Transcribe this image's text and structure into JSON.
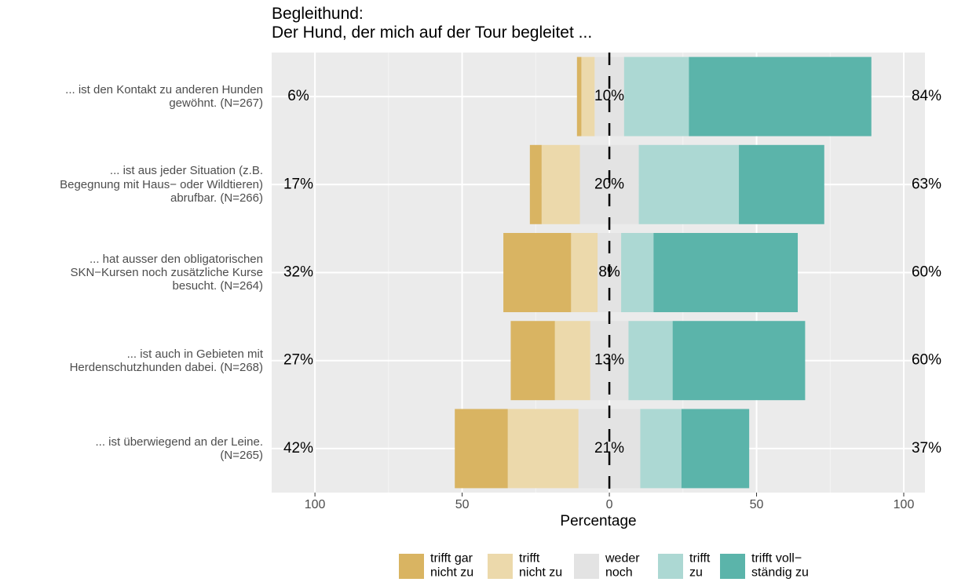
{
  "chart_data": {
    "type": "diverging_stacked_bar",
    "title": "Begleithund:\nDer Hund, der mich auf der Tour begleitet ...",
    "x_label": "Percentage",
    "categories": [
      "... ist den Kontakt zu anderen Hunden\ngewöhnt. (N=267)",
      "... ist aus jeder Situation (z.B.\nBegegnung mit Haus− oder Wildtieren)\nabrufbar. (N=266)",
      "... hat ausser den obligatorischen\nSKN−Kursen noch zusätzliche Kurse\nbesucht. (N=264)",
      "... ist auch in Gebieten mit\nHerdenschutzhunden dabei. (N=268)",
      "... ist überwiegend an der Leine.\n(N=265)"
    ],
    "series": [
      {
        "name": "trifft gar\nnicht zu",
        "color": "#d9b462",
        "side": "negative",
        "values": [
          1.5,
          4,
          23,
          15,
          18
        ]
      },
      {
        "name": "trifft\nnicht zu",
        "color": "#ecd9ab",
        "side": "negative",
        "values": [
          4.5,
          13,
          9,
          12,
          24
        ]
      },
      {
        "name": "weder\nnoch",
        "color": "#e3e3e3",
        "side": "neutral",
        "values": [
          10,
          20,
          8,
          13,
          21
        ]
      },
      {
        "name": "trifft\nzu",
        "color": "#acd8d3",
        "side": "positive",
        "values": [
          22,
          34,
          11,
          15,
          14
        ]
      },
      {
        "name": "trifft voll−\nständig zu",
        "color": "#5bb4aa",
        "side": "positive",
        "values": [
          62,
          29,
          49,
          45,
          23
        ]
      }
    ],
    "low_totals": {
      "values": [
        6,
        17,
        32,
        27,
        42
      ],
      "value_labels": [
        "6%",
        "17%",
        "32%",
        "27%",
        "42%"
      ]
    },
    "neutral_totals": {
      "values": [
        10,
        20,
        8,
        13,
        21
      ],
      "value_labels": [
        "10%",
        "20%",
        "8%",
        "13%",
        "21%"
      ]
    },
    "high_totals": {
      "values": [
        84,
        63,
        60,
        60,
        37
      ],
      "value_labels": [
        "84%",
        "63%",
        "60%",
        "60%",
        "37%"
      ]
    },
    "xlim": [
      -114.7,
      107.2
    ],
    "xticks": [
      {
        "value": -100,
        "label": "100"
      },
      {
        "value": -50,
        "label": "50"
      },
      0,
      50,
      100
    ],
    "grid": true
  }
}
